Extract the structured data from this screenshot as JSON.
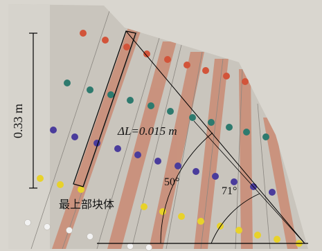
{
  "labels": {
    "height": "0.33 m",
    "delta_l": "ΔL=0.015 m",
    "angle_50": "50°",
    "angle_71": "71°",
    "top_block": "最上部块体"
  },
  "colors": {
    "background": "#ffffff",
    "slope_surface": "#c9c5bd",
    "board": "#d9d6cf",
    "red_band": "#c9826a",
    "marker_red": "#d2543a",
    "marker_teal": "#2e7a6e",
    "marker_purple": "#4a3c9c",
    "marker_yellow": "#e8d22a",
    "marker_white": "#f2f2f2",
    "line": "#000000"
  }
}
